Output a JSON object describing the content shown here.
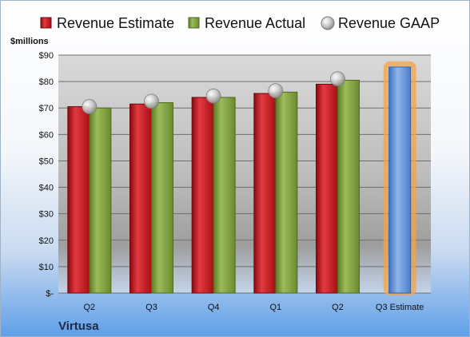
{
  "chart_data": {
    "type": "bar",
    "company": "Virtusa",
    "unit_label": "$millions",
    "categories": [
      "Q2",
      "Q3",
      "Q4",
      "Q1",
      "Q2",
      "Q3 Estimate"
    ],
    "series": [
      {
        "name": "Revenue Estimate",
        "values": [
          70.5,
          71.5,
          74.0,
          75.5,
          79.0,
          null
        ],
        "color": "#c0141c"
      },
      {
        "name": "Revenue Actual",
        "values": [
          70.0,
          72.0,
          74.0,
          76.0,
          80.5,
          null
        ],
        "color": "#7a9a3a"
      },
      {
        "name": "Revenue GAAP",
        "values": [
          70.5,
          72.5,
          74.5,
          76.5,
          81.0,
          null
        ],
        "color": "#c8c8c8"
      }
    ],
    "estimate_bar": {
      "category_index": 5,
      "value": 85.5,
      "color": "#5b8fd6",
      "glow": "#f5a442"
    },
    "ylim": [
      0,
      90
    ],
    "yticks": [
      0,
      10,
      20,
      30,
      40,
      50,
      60,
      70,
      80,
      90
    ],
    "ytick_labels": [
      "$-",
      "$10",
      "$20",
      "$30",
      "$40",
      "$50",
      "$60",
      "$70",
      "$80",
      "$90"
    ],
    "grid": true,
    "legend_position": "top"
  }
}
